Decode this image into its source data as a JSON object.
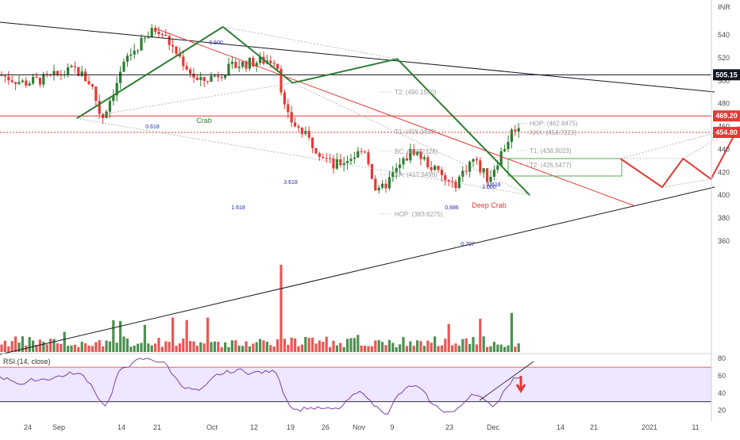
{
  "chart_data": [
    {
      "type": "candlestick",
      "currency_label": "INR",
      "price_axis_ticks": [
        360,
        380,
        400,
        420,
        440,
        460,
        480,
        500,
        520,
        540
      ],
      "date_axis_ticks": [
        "24",
        "Sep",
        "14",
        "21",
        "Oct",
        "12",
        "19",
        "26",
        "Nov",
        "9",
        "23",
        "Dec",
        "14",
        "21",
        "2021",
        "11"
      ],
      "badges": [
        {
          "label": "505.15",
          "value": 505.15,
          "color": "#131722"
        },
        {
          "label": "469.20",
          "value": 469.2,
          "color": "#e53935"
        },
        {
          "label": "454.80",
          "value": 454.8,
          "color": "#e53935"
        }
      ],
      "patterns": [
        {
          "name": "Crab",
          "color": "#2e7d32",
          "points": [
            {
              "date": "2020-08-31",
              "price": 467
            },
            {
              "date": "2020-09-21",
              "price": 547
            },
            {
              "date": "2020-10-01",
              "price": 498
            },
            {
              "date": "2020-10-16",
              "price": 519
            },
            {
              "date": "2020-11-04",
              "price": 400
            }
          ],
          "ratios": [
            "0.500",
            "0.618",
            "3.618",
            "1.618"
          ]
        },
        {
          "name": "Deep Crab",
          "color": "#e53935",
          "points": [
            {
              "date": "2020-11-17",
              "price": 432
            },
            {
              "date": "2020-11-23",
              "price": 407
            },
            {
              "date": "2020-11-26",
              "price": 432
            },
            {
              "date": "2020-11-30",
              "price": 414
            },
            {
              "date": "2020-12-04",
              "price": 460
            }
          ],
          "ratios": [
            "0.886",
            "0.707",
            "1.618",
            "2.000"
          ]
        }
      ],
      "annotations": [
        {
          "label": "T2: (490.1550)",
          "price": 490.155
        },
        {
          "label": "T1: (455.3450)",
          "price": 455.345
        },
        {
          "label": "BC: (438.2328)",
          "price": 438.2328
        },
        {
          "label": "XA: (417.9499)",
          "price": 417.9499
        },
        {
          "label": "HOP: (383.6275)",
          "price": 383.6275
        },
        {
          "label": "HOP: (462.8475)",
          "price": 462.8475
        },
        {
          "label": "XAX: (454.7223)",
          "price": 454.7223
        },
        {
          "label": "T1: (438.9023)",
          "price": 438.9023
        },
        {
          "label": "T2: (426.5477)",
          "price": 426.5477
        }
      ],
      "colors": {
        "up": "#2e7d32",
        "down": "#e53935",
        "trendline": "#131722",
        "resistance": "#e53935"
      }
    },
    {
      "type": "line",
      "title": "RSI (14, close)",
      "y_ticks": [
        20,
        40,
        60,
        80
      ],
      "ylim": [
        15,
        85
      ],
      "bands": [
        30,
        70
      ],
      "colors": {
        "line": "#7b3fb3",
        "band_fill": "#efe6ff",
        "band_line": "#e53935"
      }
    }
  ]
}
